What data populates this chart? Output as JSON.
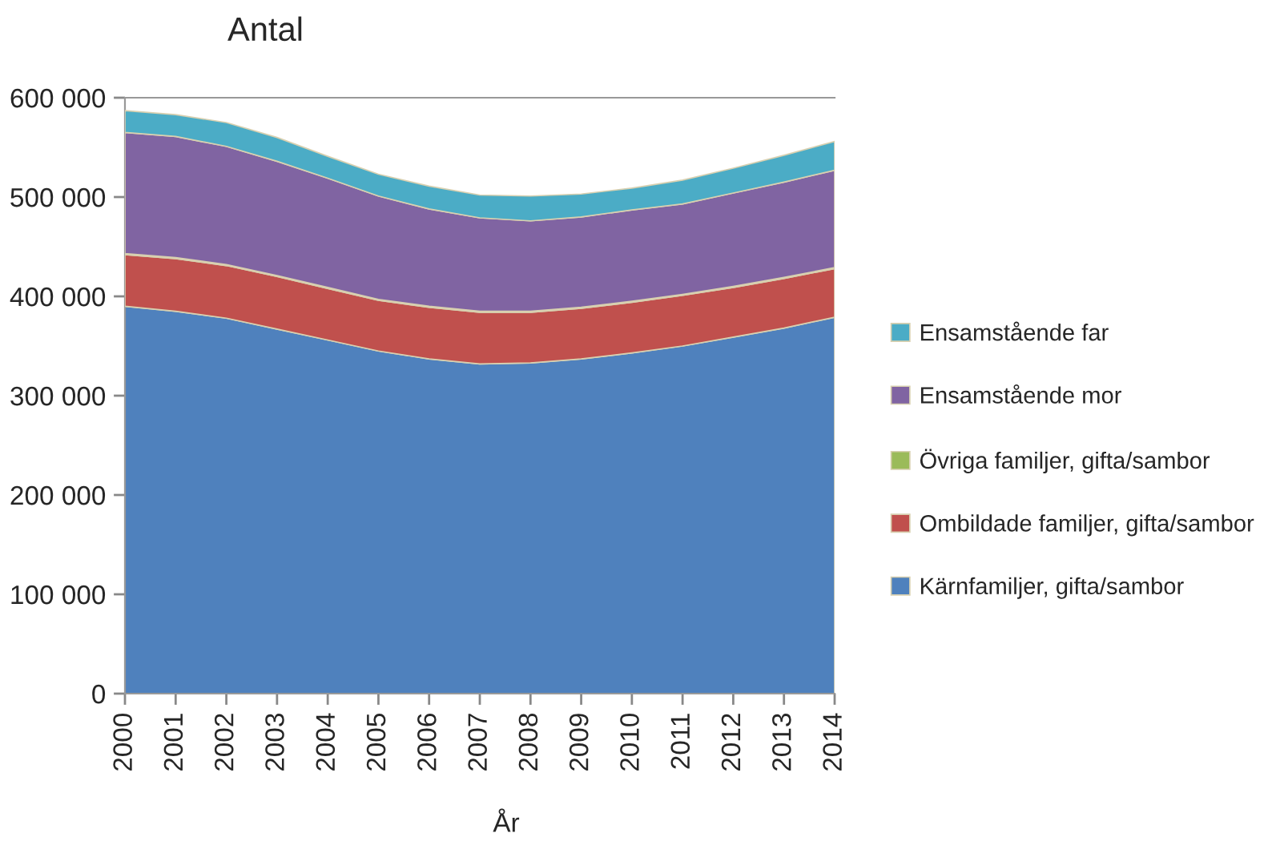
{
  "chart_data": {
    "type": "area",
    "stacked": true,
    "title": "Antal",
    "xlabel": "År",
    "categories": [
      "2000",
      "2001",
      "2002",
      "2003",
      "2004",
      "2005",
      "2006",
      "2007",
      "2008",
      "2009",
      "2010",
      "2011",
      "2012",
      "2013",
      "2014"
    ],
    "series": [
      {
        "name": "Kärnfamiljer, gifta/sambor",
        "color": "#4f81bd",
        "values": [
          390000,
          385000,
          378000,
          367000,
          356000,
          345000,
          337000,
          332000,
          333000,
          337000,
          343000,
          350000,
          359000,
          368000,
          379000
        ]
      },
      {
        "name": "Ombildade familjer, gifta/sambor",
        "color": "#c0504d",
        "values": [
          52000,
          53000,
          53000,
          53000,
          52000,
          51000,
          52000,
          52000,
          51000,
          51000,
          51000,
          51000,
          50000,
          50000,
          49000
        ]
      },
      {
        "name": "Övriga familjer, gifta/sambor",
        "color": "#9bbb59",
        "values": [
          1000,
          1000,
          1000,
          1000,
          1000,
          1000,
          1000,
          1000,
          1000,
          1000,
          1000,
          1000,
          1000,
          1000,
          1000
        ]
      },
      {
        "name": "Ensamstående mor",
        "color": "#8064a2",
        "values": [
          122000,
          122000,
          119000,
          115000,
          110000,
          104000,
          98000,
          94000,
          91000,
          91000,
          92000,
          91000,
          94000,
          96000,
          98000
        ]
      },
      {
        "name": "Ensamstående far",
        "color": "#4bacc6",
        "values": [
          22000,
          22000,
          24000,
          24000,
          22000,
          22000,
          23000,
          23000,
          25000,
          23000,
          22000,
          24000,
          25000,
          27000,
          29000
        ]
      }
    ],
    "ylim": [
      0,
      600000
    ],
    "yticks": [
      0,
      {
        "value": 100000,
        "label": "100 000"
      },
      {
        "value": 200000,
        "label": "200 000"
      },
      {
        "value": 300000,
        "label": "300 000"
      },
      {
        "value": 400000,
        "label": "400 000"
      },
      {
        "value": 500000,
        "label": "500 000"
      },
      {
        "value": 600000,
        "label": "600 000"
      }
    ],
    "legend": "right"
  }
}
